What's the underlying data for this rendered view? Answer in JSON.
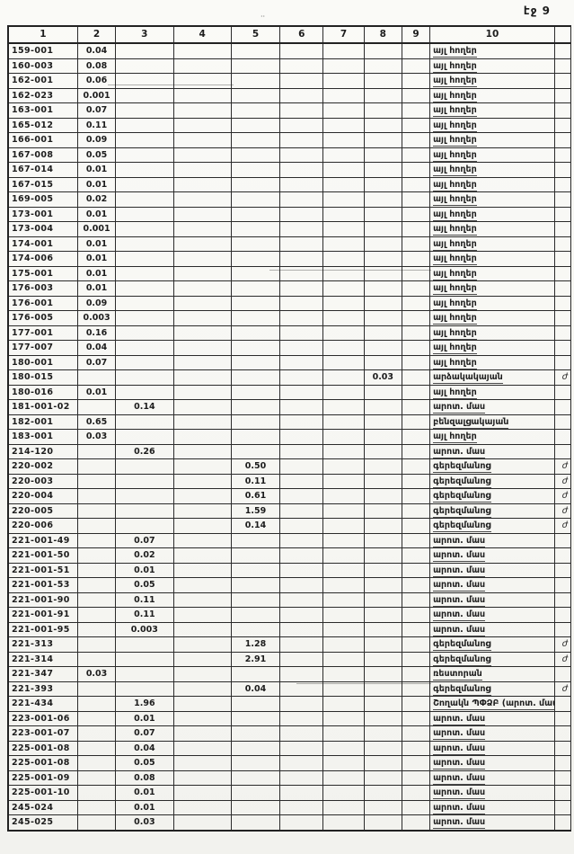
{
  "page": {
    "label": "էջ 9"
  },
  "table": {
    "columns": [
      "1",
      "2",
      "3",
      "4",
      "5",
      "6",
      "7",
      "8",
      "9",
      "10"
    ],
    "rows": [
      {
        "code": "159-001",
        "v2": "0.04",
        "use": "այլ հողեր"
      },
      {
        "code": "160-003",
        "v2": "0.08",
        "use": "այլ հողեր"
      },
      {
        "code": "162-001",
        "v2": "0.06",
        "use": "այլ հողեր"
      },
      {
        "code": "162-023",
        "v2": "0.001",
        "use": "այլ հողեր"
      },
      {
        "code": "163-001",
        "v2": "0.07",
        "use": "այլ հողեր"
      },
      {
        "code": "165-012",
        "v2": "0.11",
        "use": "այլ հողեր"
      },
      {
        "code": "166-001",
        "v2": "0.09",
        "use": "այլ հողեր"
      },
      {
        "code": "167-008",
        "v2": "0.05",
        "use": "այլ հողեր"
      },
      {
        "code": "167-014",
        "v2": "0.01",
        "use": "այլ հողեր"
      },
      {
        "code": "167-015",
        "v2": "0.01",
        "use": "այլ հողեր"
      },
      {
        "code": "169-005",
        "v2": "0.02",
        "use": "այլ հողեր"
      },
      {
        "code": "173-001",
        "v2": "0.01",
        "use": "այլ հողեր"
      },
      {
        "code": "173-004",
        "v2": "0.001",
        "use": "այլ հողեր"
      },
      {
        "code": "174-001",
        "v2": "0.01",
        "use": "այլ հողեր"
      },
      {
        "code": "174-006",
        "v2": "0.01",
        "use": "այլ հողեր"
      },
      {
        "code": "175-001",
        "v2": "0.01",
        "use": "այլ հողեր"
      },
      {
        "code": "176-003",
        "v2": "0.01",
        "use": "այլ հողեր"
      },
      {
        "code": "176-001",
        "v2": "0.09",
        "use": "այլ հողեր"
      },
      {
        "code": "176-005",
        "v2": "0.003",
        "use": "այլ հողեր"
      },
      {
        "code": "177-001",
        "v2": "0.16",
        "use": "այլ հողեր"
      },
      {
        "code": "177-007",
        "v2": "0.04",
        "use": "այլ հողեր"
      },
      {
        "code": "180-001",
        "v2": "0.07",
        "use": "այլ հողեր"
      },
      {
        "code": "180-015",
        "v8": "0.03",
        "use": "արձակակայան",
        "note": "ժ"
      },
      {
        "code": "180-016",
        "v2": "0.01",
        "use": "այլ հողեր"
      },
      {
        "code": "181-001-02",
        "v3": "0.14",
        "use": "արոտ. մաս"
      },
      {
        "code": "182-001",
        "v2": "0.65",
        "use": "բենզալցակայան"
      },
      {
        "code": "183-001",
        "v2": "0.03",
        "use": "այլ հողեր"
      },
      {
        "code": "214-120",
        "v3": "0.26",
        "use": "արոտ. մաս"
      },
      {
        "code": "220-002",
        "v5": "0.50",
        "use": "գերեզմանոց",
        "note": "ժ"
      },
      {
        "code": "220-003",
        "v5": "0.11",
        "use": "գերեզմանոց",
        "note": "ժ"
      },
      {
        "code": "220-004",
        "v5": "0.61",
        "use": "գերեզմանոց",
        "note": "ժ"
      },
      {
        "code": "220-005",
        "v5": "1.59",
        "use": "գերեզմանոց",
        "note": "ժ"
      },
      {
        "code": "220-006",
        "v5": "0.14",
        "use": "գերեզմանոց",
        "note": "ժ"
      },
      {
        "code": "221-001-49",
        "v3": "0.07",
        "use": "արոտ. մաս"
      },
      {
        "code": "221-001-50",
        "v3": "0.02",
        "use": "արոտ. մաս"
      },
      {
        "code": "221-001-51",
        "v3": "0.01",
        "use": "արոտ. մաս"
      },
      {
        "code": "221-001-53",
        "v3": "0.05",
        "use": "արոտ. մաս"
      },
      {
        "code": "221-001-90",
        "v3": "0.11",
        "use": "արոտ. մաս"
      },
      {
        "code": "221-001-91",
        "v3": "0.11",
        "use": "արոտ. մաս"
      },
      {
        "code": "221-001-95",
        "v3": "0.003",
        "use": "արոտ. մաս"
      },
      {
        "code": "221-313",
        "v5": "1.28",
        "use": "գերեզմանոց",
        "note": "ժ"
      },
      {
        "code": "221-314",
        "v5": "2.91",
        "use": "գերեզմանոց",
        "note": "ժ"
      },
      {
        "code": "221-347",
        "v2": "0.03",
        "use": "ռեստորան"
      },
      {
        "code": "221-393",
        "v5": "0.04",
        "use": "գերեզմանոց",
        "note": "ժ"
      },
      {
        "code": "221-434",
        "v3": "1.96",
        "use": "Շողակն ՊՓՁԲ (արոտ. մաս"
      },
      {
        "code": "223-001-06",
        "v3": "0.01",
        "use": "արոտ. մաս"
      },
      {
        "code": "223-001-07",
        "v3": "0.07",
        "use": "արոտ. մաս"
      },
      {
        "code": "225-001-08",
        "v3": "0.04",
        "use": "արոտ. մաս"
      },
      {
        "code": "225-001-08",
        "v3": "0.05",
        "use": "արոտ. մաս"
      },
      {
        "code": "225-001-09",
        "v3": "0.08",
        "use": "արոտ. մաս"
      },
      {
        "code": "225-001-10",
        "v3": "0.01",
        "use": "արոտ. մաս"
      },
      {
        "code": "245-024",
        "v3": "0.01",
        "use": "արոտ. մաս"
      },
      {
        "code": "245-025",
        "v3": "0.03",
        "use": "արոտ. մաս"
      }
    ]
  }
}
